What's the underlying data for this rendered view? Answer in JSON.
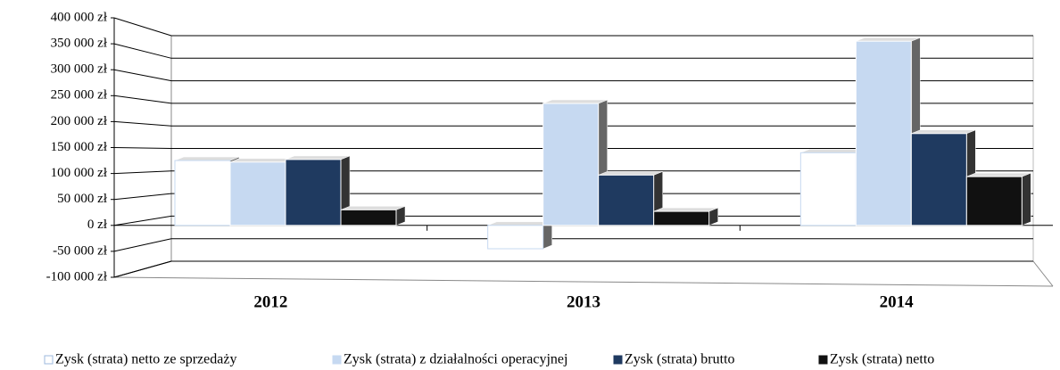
{
  "chart_data": {
    "type": "bar3d",
    "categories": [
      "2012",
      "2013",
      "2014"
    ],
    "series": [
      {
        "name": "Zysk (strata) netto ze sprzedaży",
        "color": "#ffffff",
        "values": [
          125000,
          -45000,
          140000
        ]
      },
      {
        "name": "Zysk (strata) z działalności operacyjnej",
        "color": "#c6d9f1",
        "values": [
          122000,
          235000,
          355000
        ]
      },
      {
        "name": "Zysk (strata) brutto",
        "color": "#1f3a60",
        "values": [
          127000,
          97000,
          177000
        ]
      },
      {
        "name": "Zysk  (strata) netto",
        "color": "#111111",
        "values": [
          30000,
          27000,
          94000
        ]
      }
    ],
    "ylim": [
      -100000,
      400000
    ],
    "yticks": [
      {
        "value": -100000,
        "label": "-100 000 zł"
      },
      {
        "value": -50000,
        "label": "-50 000 zł"
      },
      {
        "value": 0,
        "label": "0 zł"
      },
      {
        "value": 50000,
        "label": "50 000 zł"
      },
      {
        "value": 100000,
        "label": "100 000 zł"
      },
      {
        "value": 150000,
        "label": "150 000 zł"
      },
      {
        "value": 200000,
        "label": "200 000 zł"
      },
      {
        "value": 250000,
        "label": "250 000 zł"
      },
      {
        "value": 300000,
        "label": "300 000 zł"
      },
      {
        "value": 350000,
        "label": "350 000 zł"
      },
      {
        "value": 400000,
        "label": "400 000 zł"
      }
    ],
    "grid": true,
    "legend": "bottom"
  }
}
